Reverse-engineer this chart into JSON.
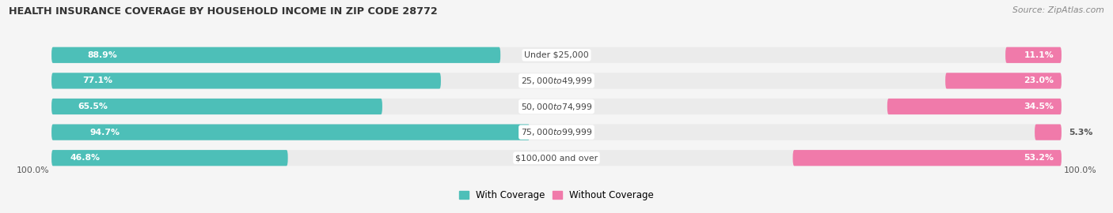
{
  "title": "HEALTH INSURANCE COVERAGE BY HOUSEHOLD INCOME IN ZIP CODE 28772",
  "source": "Source: ZipAtlas.com",
  "categories": [
    "Under $25,000",
    "$25,000 to $49,999",
    "$50,000 to $74,999",
    "$75,000 to $99,999",
    "$100,000 and over"
  ],
  "with_coverage": [
    88.9,
    77.1,
    65.5,
    94.7,
    46.8
  ],
  "without_coverage": [
    11.1,
    23.0,
    34.5,
    5.3,
    53.2
  ],
  "color_with": "#4DBFB8",
  "color_without": "#F07AAA",
  "bg_color": "#f5f5f5",
  "bar_bg_color": "#e2e2e2",
  "bar_height": 0.62,
  "row_bg_color": "#ebebeb",
  "legend_with": "With Coverage",
  "legend_without": "Without Coverage"
}
